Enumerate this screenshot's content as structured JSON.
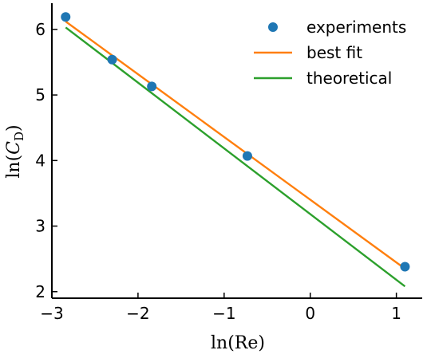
{
  "chart_data": {
    "type": "scatter",
    "xlabel_main": "ln(Re)",
    "ylabel_main": "ln(",
    "ylabel_var": "C",
    "ylabel_sub": "D",
    "ylabel_close": ")",
    "xlim": [
      -3.0,
      1.3
    ],
    "ylim": [
      1.9,
      6.4
    ],
    "xticks": [
      -3,
      -2,
      -1,
      0,
      1
    ],
    "yticks": [
      2,
      3,
      4,
      5,
      6
    ],
    "xtick_labels": [
      "−3",
      "−2",
      "−1",
      "0",
      "1"
    ],
    "ytick_labels": [
      "2",
      "3",
      "4",
      "5",
      "6"
    ],
    "legend_position": "top-right",
    "series": [
      {
        "name": "experiments",
        "kind": "points",
        "color": "#1f77b4",
        "x": [
          -2.84,
          -2.3,
          -1.84,
          -0.73,
          1.1
        ],
        "y": [
          6.19,
          5.54,
          5.13,
          4.07,
          2.38
        ]
      },
      {
        "name": "best fit",
        "kind": "line",
        "color": "#ff7f0e",
        "x": [
          -2.84,
          1.1
        ],
        "y": [
          6.12,
          2.35
        ]
      },
      {
        "name": "theoretical",
        "kind": "line",
        "color": "#2ca02c",
        "x": [
          -2.84,
          1.1
        ],
        "y": [
          6.03,
          2.08
        ]
      }
    ]
  }
}
